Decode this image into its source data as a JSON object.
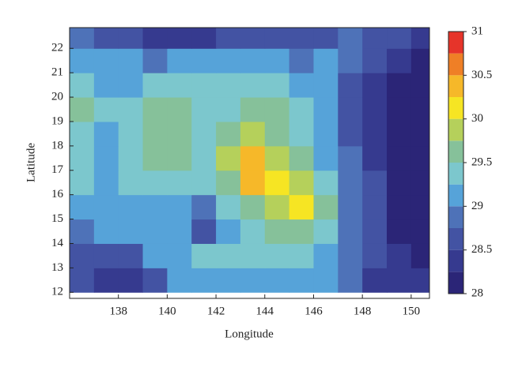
{
  "chart_data": {
    "type": "contour",
    "x_label": "Longitude",
    "y_label": "Latitude",
    "x": [
      136.5,
      137.5,
      138.5,
      139.5,
      140.5,
      141.5,
      142.5,
      143.5,
      144.5,
      145.5,
      146.5,
      147.5,
      148.5,
      149.5,
      150.5
    ],
    "y": [
      12.5,
      13.5,
      14.5,
      15.5,
      16.5,
      17.5,
      18.5,
      19.5,
      20.5,
      21.5,
      22.5
    ],
    "z": [
      [
        28.7,
        28.3,
        28.3,
        28.7,
        29.0,
        29.1,
        29.2,
        29.2,
        29.1,
        29.0,
        29.0,
        28.8,
        28.4,
        28.3,
        28.3
      ],
      [
        28.7,
        28.5,
        28.6,
        29.0,
        29.2,
        29.3,
        29.4,
        29.4,
        29.3,
        29.3,
        29.2,
        28.9,
        28.5,
        28.3,
        28.2
      ],
      [
        28.9,
        29.0,
        29.1,
        29.2,
        29.1,
        28.6,
        29.2,
        29.4,
        29.5,
        29.6,
        29.3,
        28.9,
        28.5,
        28.2,
        28.1
      ],
      [
        29.2,
        29.1,
        29.2,
        29.2,
        29.1,
        28.9,
        29.3,
        29.6,
        29.9,
        30.1,
        29.6,
        28.9,
        28.5,
        28.2,
        28.1
      ],
      [
        29.3,
        29.2,
        29.3,
        29.4,
        29.3,
        29.3,
        29.7,
        30.4,
        30.0,
        29.8,
        29.3,
        28.9,
        28.5,
        28.2,
        28.1
      ],
      [
        29.3,
        29.1,
        29.3,
        29.6,
        29.5,
        29.4,
        29.8,
        30.3,
        29.9,
        29.5,
        29.2,
        28.8,
        28.4,
        28.1,
        28.1
      ],
      [
        29.3,
        29.1,
        29.4,
        29.6,
        29.6,
        29.4,
        29.5,
        29.8,
        29.7,
        29.4,
        29.1,
        28.7,
        28.3,
        28.1,
        28.1
      ],
      [
        29.5,
        29.3,
        29.4,
        29.5,
        29.5,
        29.4,
        29.3,
        29.5,
        29.5,
        29.3,
        29.0,
        28.6,
        28.3,
        28.1,
        28.1
      ],
      [
        29.3,
        29.2,
        29.2,
        29.3,
        29.3,
        29.3,
        29.3,
        29.4,
        29.3,
        29.2,
        29.0,
        28.7,
        28.4,
        28.2,
        28.1
      ],
      [
        29.1,
        29.1,
        29.0,
        28.9,
        29.0,
        29.1,
        29.1,
        29.1,
        29.0,
        28.9,
        29.0,
        28.8,
        28.5,
        28.3,
        28.2
      ],
      [
        28.9,
        28.6,
        28.5,
        28.4,
        28.4,
        28.4,
        28.5,
        28.6,
        28.6,
        28.6,
        28.7,
        28.9,
        28.6,
        28.5,
        28.3
      ]
    ],
    "xlim": [
      136,
      150.75
    ],
    "ylim": [
      11.75,
      22.85
    ],
    "xticks": [
      138,
      140,
      142,
      144,
      146,
      148,
      150
    ],
    "yticks": [
      12,
      13,
      14,
      15,
      16,
      17,
      18,
      19,
      20,
      21,
      22
    ],
    "levels": [
      28,
      28.25,
      28.5,
      28.75,
      29,
      29.25,
      29.5,
      29.75,
      30,
      30.25,
      30.5,
      30.75,
      31
    ],
    "colors": [
      "#2b2577",
      "#363a8f",
      "#4353a3",
      "#4e72b8",
      "#56a3d9",
      "#7cc7cd",
      "#86c19a",
      "#b5d05b",
      "#f6e523",
      "#f6b829",
      "#ef7f26",
      "#e6342a"
    ],
    "colorbar_ticks": [
      28,
      28.5,
      29,
      29.5,
      30,
      30.5,
      31
    ]
  }
}
